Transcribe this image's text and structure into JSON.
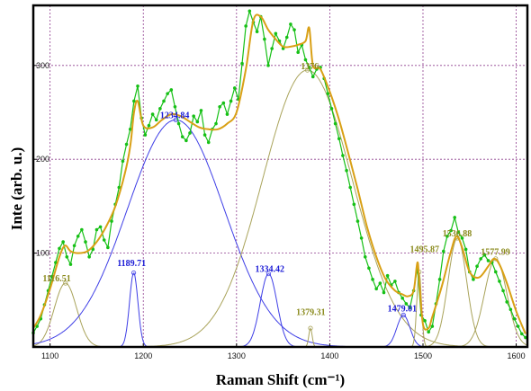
{
  "chart_data": {
    "type": "line",
    "title": "",
    "xlabel": "Raman Shift (cm⁻¹)",
    "ylabel": "Inte (arb. u.)",
    "xlim": [
      1082,
      1612
    ],
    "ylim": [
      0,
      364
    ],
    "grid": true,
    "x_ticks": [
      1100,
      1200,
      1300,
      1400,
      1500,
      1600
    ],
    "y_ticks": [
      100,
      200,
      300
    ],
    "x_tick_labels": [
      "1100",
      "1200",
      "1300",
      "1400",
      "1500",
      "1600"
    ],
    "y_tick_labels": [
      "100",
      "200",
      "300"
    ],
    "colors": {
      "measured": "#16c016",
      "fit_sum": "#d9a015",
      "component_blue": "#3e3ee6",
      "component_olive": "#a9a35a",
      "label_blue": "#1b1bd6",
      "label_olive": "#8a8a1c",
      "grid": "#8e3d8e"
    },
    "measured": {
      "x": [
        1082,
        1086,
        1090,
        1094,
        1098,
        1102,
        1106,
        1110,
        1114,
        1118,
        1122,
        1126,
        1130,
        1134,
        1138,
        1142,
        1146,
        1150,
        1154,
        1158,
        1162,
        1166,
        1170,
        1174,
        1178,
        1182,
        1186,
        1190,
        1194,
        1198,
        1202,
        1206,
        1210,
        1214,
        1218,
        1222,
        1226,
        1230,
        1234,
        1238,
        1242,
        1246,
        1250,
        1254,
        1258,
        1262,
        1266,
        1270,
        1274,
        1278,
        1282,
        1286,
        1290,
        1294,
        1298,
        1302,
        1306,
        1310,
        1314,
        1318,
        1322,
        1326,
        1330,
        1334,
        1338,
        1342,
        1346,
        1350,
        1354,
        1358,
        1362,
        1366,
        1370,
        1374,
        1378,
        1382,
        1386,
        1390,
        1394,
        1398,
        1402,
        1406,
        1410,
        1414,
        1418,
        1422,
        1426,
        1430,
        1434,
        1438,
        1442,
        1446,
        1450,
        1454,
        1458,
        1462,
        1466,
        1470,
        1474,
        1478,
        1482,
        1486,
        1490,
        1494,
        1498,
        1502,
        1506,
        1510,
        1514,
        1518,
        1522,
        1526,
        1530,
        1534,
        1538,
        1542,
        1546,
        1550,
        1554,
        1558,
        1562,
        1566,
        1570,
        1574,
        1578,
        1582,
        1586,
        1590,
        1594,
        1598,
        1602,
        1606,
        1610
      ],
      "y": [
        15,
        22,
        30,
        45,
        60,
        75,
        90,
        105,
        112,
        96,
        88,
        108,
        118,
        125,
        112,
        96,
        104,
        125,
        128,
        114,
        106,
        134,
        152,
        170,
        198,
        216,
        232,
        262,
        278,
        244,
        226,
        236,
        248,
        242,
        254,
        262,
        270,
        274,
        256,
        238,
        224,
        220,
        228,
        246,
        240,
        252,
        226,
        218,
        232,
        238,
        256,
        260,
        248,
        262,
        276,
        264,
        302,
        342,
        358,
        346,
        336,
        352,
        328,
        300,
        318,
        334,
        326,
        318,
        330,
        344,
        338,
        314,
        322,
        306,
        298,
        288,
        296,
        298,
        286,
        270,
        254,
        238,
        222,
        204,
        188,
        170,
        152,
        134,
        116,
        96,
        84,
        72,
        62,
        68,
        58,
        76,
        66,
        70,
        58,
        52,
        46,
        42,
        60,
        84,
        34,
        28,
        16,
        22,
        46,
        72,
        102,
        118,
        124,
        138,
        122,
        116,
        104,
        80,
        72,
        86,
        94,
        98,
        92,
        90,
        80,
        70,
        60,
        48,
        40,
        30,
        22,
        14,
        10
      ]
    },
    "fit_sum": {
      "x": [
        1082,
        1090,
        1100,
        1110,
        1116,
        1122,
        1130,
        1140,
        1150,
        1160,
        1170,
        1180,
        1186,
        1190,
        1194,
        1200,
        1210,
        1220,
        1230,
        1240,
        1250,
        1260,
        1270,
        1280,
        1290,
        1300,
        1310,
        1318,
        1326,
        1334,
        1342,
        1350,
        1358,
        1366,
        1374,
        1378,
        1382,
        1390,
        1400,
        1410,
        1420,
        1430,
        1440,
        1450,
        1460,
        1470,
        1478,
        1484,
        1490,
        1494,
        1496,
        1500,
        1506,
        1510,
        1520,
        1530,
        1536,
        1542,
        1550,
        1560,
        1570,
        1576,
        1582,
        1590,
        1600,
        1610
      ],
      "y": [
        20,
        34,
        62,
        96,
        108,
        102,
        100,
        102,
        112,
        128,
        150,
        184,
        214,
        250,
        262,
        236,
        234,
        242,
        248,
        246,
        240,
        234,
        232,
        232,
        238,
        250,
        296,
        348,
        352,
        338,
        328,
        320,
        320,
        322,
        326,
        340,
        300,
        296,
        272,
        242,
        206,
        168,
        128,
        96,
        72,
        60,
        56,
        54,
        60,
        90,
        70,
        24,
        20,
        32,
        64,
        102,
        118,
        106,
        80,
        74,
        86,
        94,
        88,
        68,
        38,
        14
      ]
    },
    "components": [
      {
        "center": 1116.51,
        "label": "1116.51",
        "amplitude": 68,
        "width": 12,
        "color": "olive",
        "label_pos": [
          1092,
          70
        ]
      },
      {
        "center": 1189.71,
        "label": "1189.71",
        "amplitude": 79,
        "width": 4.5,
        "color": "blue",
        "label_pos": [
          1172,
          86
        ]
      },
      {
        "center": 1234.84,
        "label": "1234.84",
        "amplitude": 242,
        "width": 52,
        "color": "blue",
        "label_pos": [
          1218,
          244
        ]
      },
      {
        "center": 1334.42,
        "label": "1334.42",
        "amplitude": 78,
        "width": 9,
        "color": "blue",
        "label_pos": [
          1320,
          80
        ]
      },
      {
        "center": 1379.31,
        "label": "1379.31",
        "amplitude": 20,
        "width": 1.8,
        "color": "olive",
        "label_pos": [
          1364,
          34
        ]
      },
      {
        "center": 1376,
        "label": "1376",
        "amplitude": 295,
        "width": 48,
        "color": "olive",
        "label_pos": [
          1369,
          296
        ]
      },
      {
        "center": 1479.01,
        "label": "1479.01",
        "amplitude": 34,
        "width": 7,
        "color": "blue",
        "label_pos": [
          1462,
          38
        ]
      },
      {
        "center": 1495.87,
        "label": "1495.87",
        "amplitude": 80,
        "width": 2.5,
        "color": "olive",
        "label_pos": [
          1486,
          101
        ]
      },
      {
        "center": 1536.88,
        "label": "1536.88",
        "amplitude": 116,
        "width": 10,
        "color": "olive",
        "label_pos": [
          1521,
          118
        ]
      },
      {
        "center": 1577.99,
        "label": "1577.99",
        "amplitude": 94,
        "width": 12,
        "color": "olive",
        "label_pos": [
          1562,
          98
        ]
      }
    ]
  }
}
